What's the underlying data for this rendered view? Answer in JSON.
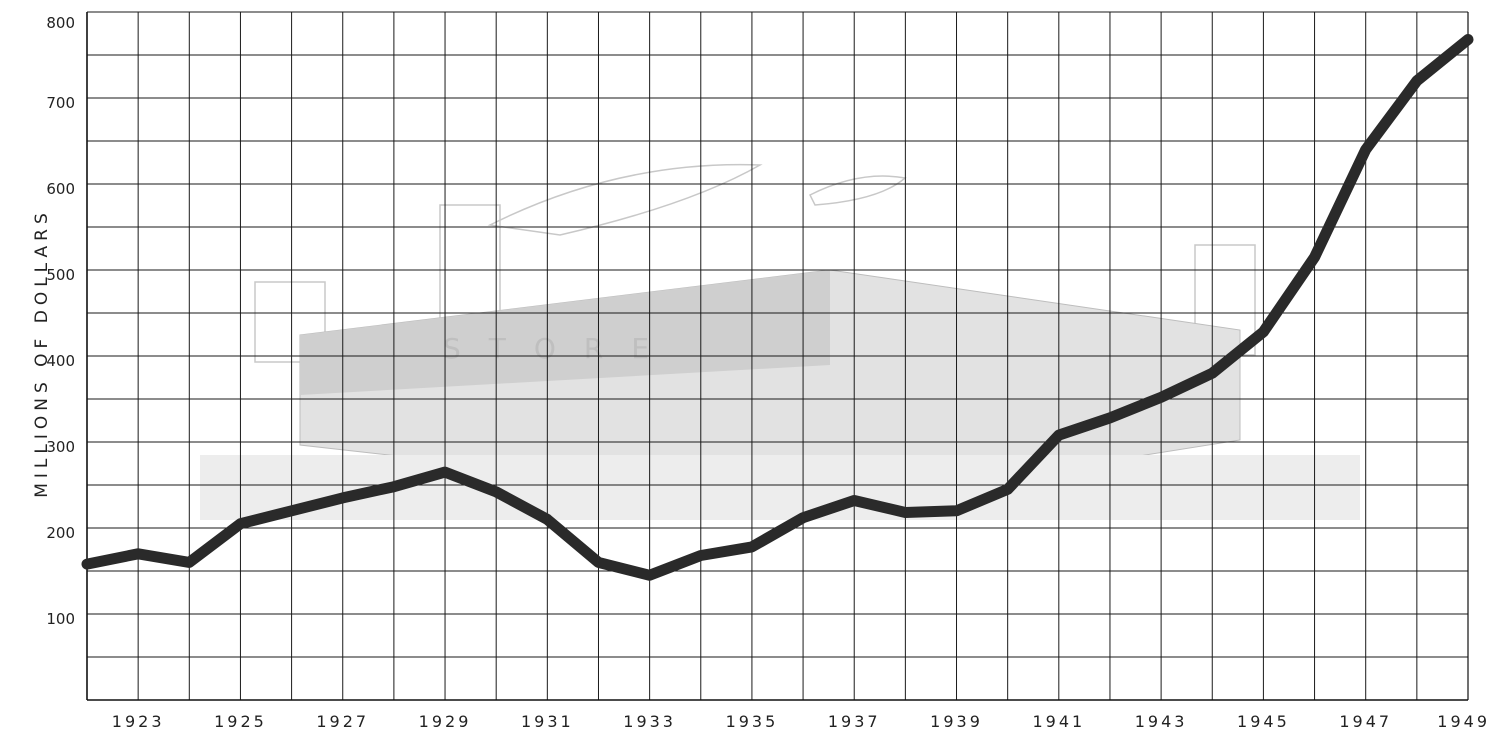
{
  "chart_data": {
    "type": "line",
    "title": "",
    "xlabel": "",
    "ylabel": "MILLIONS OF DOLLARS",
    "xlim": [
      1922,
      1949
    ],
    "ylim": [
      0,
      800
    ],
    "grid": true,
    "legend": "none",
    "x_tick_labels": [
      "1923",
      "1925",
      "1927",
      "1929",
      "1931",
      "1933",
      "1935",
      "1937",
      "1939",
      "1941",
      "1943",
      "1945",
      "1947",
      "1949"
    ],
    "y_tick_labels": [
      "100",
      "200",
      "300",
      "400",
      "500",
      "600",
      "700",
      "800"
    ],
    "background_watermark_text": "STORE",
    "colors": {
      "line": "#2a2a2a",
      "grid": "#1a1a1a",
      "watermark": "#c8c8c8"
    },
    "series": [
      {
        "x": [
          1922,
          1923,
          1924,
          1925,
          1926,
          1927,
          1928,
          1929,
          1930,
          1931,
          1932,
          1933,
          1934,
          1935,
          1936,
          1937,
          1938,
          1939,
          1940,
          1941,
          1942,
          1943,
          1944,
          1945,
          1946,
          1947,
          1948,
          1949
        ],
        "y": [
          158,
          170,
          160,
          205,
          220,
          235,
          248,
          265,
          242,
          210,
          160,
          145,
          168,
          178,
          212,
          232,
          218,
          220,
          245,
          308,
          328,
          352,
          380,
          428,
          515,
          640,
          720,
          768
        ]
      }
    ]
  }
}
